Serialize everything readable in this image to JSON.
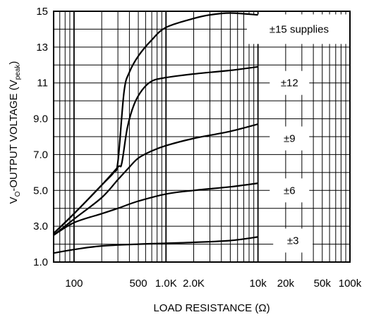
{
  "chart_data": {
    "type": "line",
    "xscale": "log",
    "x_range": [
      60,
      100000
    ],
    "y_range": [
      1.0,
      15.0
    ],
    "xlabel": "LOAD RESISTANCE (Ω)",
    "ylabel_main": "V",
    "ylabel_sub": "O",
    "ylabel_rest": "-OUTPUT VOLTAGE (V",
    "ylabel_sub2": "peak",
    "ylabel_end": ")",
    "x_ticks": [
      {
        "value": 100,
        "label": "100"
      },
      {
        "value": 500,
        "label": "500"
      },
      {
        "value": 1000,
        "label": "1.0K"
      },
      {
        "value": 2000,
        "label": "2.0K"
      },
      {
        "value": 10000,
        "label": "10k"
      },
      {
        "value": 20000,
        "label": "20k"
      },
      {
        "value": 50000,
        "label": "50k"
      },
      {
        "value": 100000,
        "label": "100k"
      }
    ],
    "y_ticks": [
      {
        "value": 1.0,
        "label": "1.0"
      },
      {
        "value": 3.0,
        "label": "3.0"
      },
      {
        "value": 5.0,
        "label": "5.0"
      },
      {
        "value": 7.0,
        "label": "7.0"
      },
      {
        "value": 9.0,
        "label": "9.0"
      },
      {
        "value": 11,
        "label": "11"
      },
      {
        "value": 13,
        "label": "13"
      },
      {
        "value": 15,
        "label": "15"
      }
    ],
    "grid": true,
    "series": [
      {
        "name": "±15 supplies",
        "label_at": [
          28000,
          14.0
        ],
        "points": [
          [
            60,
            2.6
          ],
          [
            100,
            3.7
          ],
          [
            200,
            5.3
          ],
          [
            270,
            6.0
          ],
          [
            300,
            6.6
          ],
          [
            350,
            10.5
          ],
          [
            400,
            11.6
          ],
          [
            500,
            12.5
          ],
          [
            700,
            13.4
          ],
          [
            1000,
            14.1
          ],
          [
            2000,
            14.6
          ],
          [
            3000,
            14.8
          ],
          [
            5000,
            14.9
          ],
          [
            10000,
            14.8
          ]
        ]
      },
      {
        "name": "±12",
        "label_at": [
          22000,
          11.0
        ],
        "points": [
          [
            60,
            2.6
          ],
          [
            100,
            3.7
          ],
          [
            200,
            5.3
          ],
          [
            300,
            6.3
          ],
          [
            330,
            6.5
          ],
          [
            380,
            8.5
          ],
          [
            450,
            9.8
          ],
          [
            550,
            10.6
          ],
          [
            700,
            11.1
          ],
          [
            1000,
            11.3
          ],
          [
            2000,
            11.5
          ],
          [
            5000,
            11.7
          ],
          [
            10000,
            11.9
          ]
        ]
      },
      {
        "name": "±9",
        "label_at": [
          22000,
          7.9
        ],
        "points": [
          [
            60,
            2.5
          ],
          [
            100,
            3.4
          ],
          [
            200,
            4.6
          ],
          [
            300,
            5.6
          ],
          [
            400,
            6.3
          ],
          [
            500,
            6.8
          ],
          [
            700,
            7.2
          ],
          [
            1000,
            7.5
          ],
          [
            2000,
            7.9
          ],
          [
            5000,
            8.3
          ],
          [
            10000,
            8.7
          ]
        ]
      },
      {
        "name": "±6",
        "label_at": [
          22000,
          5.0
        ],
        "points": [
          [
            60,
            2.5
          ],
          [
            100,
            3.2
          ],
          [
            200,
            3.7
          ],
          [
            300,
            4.0
          ],
          [
            500,
            4.4
          ],
          [
            1000,
            4.8
          ],
          [
            2000,
            5.0
          ],
          [
            5000,
            5.2
          ],
          [
            10000,
            5.4
          ]
        ]
      },
      {
        "name": "±3",
        "label_at": [
          24000,
          2.2
        ],
        "points": [
          [
            60,
            1.5
          ],
          [
            100,
            1.7
          ],
          [
            200,
            1.9
          ],
          [
            500,
            2.0
          ],
          [
            1000,
            2.05
          ],
          [
            2000,
            2.1
          ],
          [
            5000,
            2.2
          ],
          [
            10000,
            2.4
          ]
        ]
      }
    ]
  }
}
